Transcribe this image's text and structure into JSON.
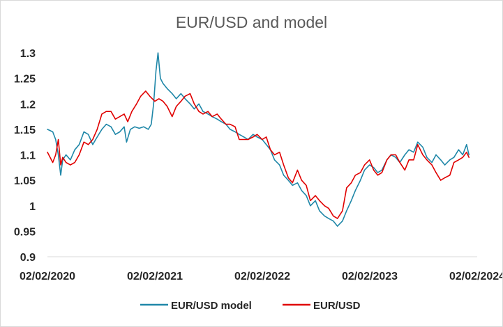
{
  "chart_data": {
    "type": "line",
    "title": "EUR/USD and model",
    "xlabel": "",
    "ylabel": "",
    "ylim": [
      0.9,
      1.3
    ],
    "y_ticks": [
      "0.9",
      "0.95",
      "1",
      "1.05",
      "1.1",
      "1.15",
      "1.2",
      "1.25",
      "1.3"
    ],
    "x_ticks": [
      "02/02/2020",
      "02/02/2021",
      "02/02/2022",
      "02/02/2023",
      "02/02/2024"
    ],
    "xlim": [
      "2020-02-02",
      "2024-02-02"
    ],
    "grid": false,
    "legend_position": "bottom",
    "series": [
      {
        "name": "EUR/USD model",
        "color": "#1f87a8",
        "points": [
          [
            "2020-02-02",
            1.15
          ],
          [
            "2020-02-20",
            1.145
          ],
          [
            "2020-03-01",
            1.13
          ],
          [
            "2020-03-10",
            1.1
          ],
          [
            "2020-03-18",
            1.06
          ],
          [
            "2020-03-25",
            1.09
          ],
          [
            "2020-04-05",
            1.1
          ],
          [
            "2020-04-20",
            1.09
          ],
          [
            "2020-05-05",
            1.11
          ],
          [
            "2020-05-20",
            1.12
          ],
          [
            "2020-06-05",
            1.145
          ],
          [
            "2020-06-20",
            1.14
          ],
          [
            "2020-07-05",
            1.12
          ],
          [
            "2020-07-20",
            1.135
          ],
          [
            "2020-08-05",
            1.15
          ],
          [
            "2020-08-20",
            1.16
          ],
          [
            "2020-09-05",
            1.155
          ],
          [
            "2020-09-20",
            1.14
          ],
          [
            "2020-10-05",
            1.145
          ],
          [
            "2020-10-20",
            1.155
          ],
          [
            "2020-10-28",
            1.125
          ],
          [
            "2020-11-10",
            1.15
          ],
          [
            "2020-11-25",
            1.155
          ],
          [
            "2020-12-10",
            1.152
          ],
          [
            "2020-12-25",
            1.155
          ],
          [
            "2021-01-10",
            1.15
          ],
          [
            "2021-01-20",
            1.16
          ],
          [
            "2021-01-28",
            1.2
          ],
          [
            "2021-02-05",
            1.265
          ],
          [
            "2021-02-12",
            1.3
          ],
          [
            "2021-02-20",
            1.25
          ],
          [
            "2021-03-01",
            1.24
          ],
          [
            "2021-03-15",
            1.23
          ],
          [
            "2021-04-01",
            1.22
          ],
          [
            "2021-04-15",
            1.21
          ],
          [
            "2021-05-01",
            1.22
          ],
          [
            "2021-05-15",
            1.21
          ],
          [
            "2021-06-01",
            1.2
          ],
          [
            "2021-06-15",
            1.19
          ],
          [
            "2021-07-01",
            1.2
          ],
          [
            "2021-07-15",
            1.185
          ],
          [
            "2021-08-01",
            1.18
          ],
          [
            "2021-08-15",
            1.175
          ],
          [
            "2021-09-01",
            1.17
          ],
          [
            "2021-09-15",
            1.165
          ],
          [
            "2021-10-01",
            1.16
          ],
          [
            "2021-10-15",
            1.15
          ],
          [
            "2021-11-01",
            1.145
          ],
          [
            "2021-11-15",
            1.14
          ],
          [
            "2021-12-01",
            1.135
          ],
          [
            "2021-12-15",
            1.13
          ],
          [
            "2022-01-01",
            1.14
          ],
          [
            "2022-01-15",
            1.135
          ],
          [
            "2022-02-01",
            1.13
          ],
          [
            "2022-02-15",
            1.12
          ],
          [
            "2022-03-01",
            1.11
          ],
          [
            "2022-03-15",
            1.09
          ],
          [
            "2022-04-01",
            1.08
          ],
          [
            "2022-04-15",
            1.06
          ],
          [
            "2022-05-01",
            1.05
          ],
          [
            "2022-05-15",
            1.04
          ],
          [
            "2022-06-01",
            1.045
          ],
          [
            "2022-06-15",
            1.03
          ],
          [
            "2022-07-01",
            1.02
          ],
          [
            "2022-07-15",
            1.0
          ],
          [
            "2022-08-01",
            1.01
          ],
          [
            "2022-08-15",
            0.99
          ],
          [
            "2022-09-01",
            0.98
          ],
          [
            "2022-09-15",
            0.975
          ],
          [
            "2022-10-01",
            0.97
          ],
          [
            "2022-10-15",
            0.96
          ],
          [
            "2022-11-01",
            0.97
          ],
          [
            "2022-11-15",
            0.99
          ],
          [
            "2022-12-01",
            1.01
          ],
          [
            "2022-12-15",
            1.03
          ],
          [
            "2023-01-01",
            1.05
          ],
          [
            "2023-01-15",
            1.07
          ],
          [
            "2023-02-01",
            1.08
          ],
          [
            "2023-02-15",
            1.075
          ],
          [
            "2023-03-01",
            1.065
          ],
          [
            "2023-03-15",
            1.07
          ],
          [
            "2023-04-01",
            1.09
          ],
          [
            "2023-04-15",
            1.1
          ],
          [
            "2023-05-01",
            1.095
          ],
          [
            "2023-05-15",
            1.085
          ],
          [
            "2023-06-01",
            1.1
          ],
          [
            "2023-06-15",
            1.11
          ],
          [
            "2023-07-01",
            1.105
          ],
          [
            "2023-07-15",
            1.125
          ],
          [
            "2023-08-01",
            1.115
          ],
          [
            "2023-08-15",
            1.095
          ],
          [
            "2023-09-01",
            1.085
          ],
          [
            "2023-09-15",
            1.1
          ],
          [
            "2023-10-01",
            1.09
          ],
          [
            "2023-10-15",
            1.08
          ],
          [
            "2023-11-01",
            1.09
          ],
          [
            "2023-11-15",
            1.095
          ],
          [
            "2023-12-01",
            1.11
          ],
          [
            "2023-12-15",
            1.1
          ],
          [
            "2023-12-28",
            1.12
          ],
          [
            "2024-01-05",
            1.1
          ]
        ]
      },
      {
        "name": "EUR/USD",
        "color": "#e00000",
        "points": [
          [
            "2020-02-02",
            1.105
          ],
          [
            "2020-02-20",
            1.085
          ],
          [
            "2020-03-01",
            1.1
          ],
          [
            "2020-03-10",
            1.13
          ],
          [
            "2020-03-18",
            1.08
          ],
          [
            "2020-03-25",
            1.095
          ],
          [
            "2020-04-05",
            1.085
          ],
          [
            "2020-04-20",
            1.08
          ],
          [
            "2020-05-05",
            1.085
          ],
          [
            "2020-05-20",
            1.1
          ],
          [
            "2020-06-05",
            1.125
          ],
          [
            "2020-06-20",
            1.12
          ],
          [
            "2020-07-05",
            1.13
          ],
          [
            "2020-07-20",
            1.15
          ],
          [
            "2020-08-05",
            1.18
          ],
          [
            "2020-08-20",
            1.185
          ],
          [
            "2020-09-05",
            1.185
          ],
          [
            "2020-09-20",
            1.17
          ],
          [
            "2020-10-05",
            1.175
          ],
          [
            "2020-10-20",
            1.18
          ],
          [
            "2020-11-01",
            1.165
          ],
          [
            "2020-11-15",
            1.185
          ],
          [
            "2020-12-01",
            1.2
          ],
          [
            "2020-12-15",
            1.215
          ],
          [
            "2021-01-01",
            1.225
          ],
          [
            "2021-01-15",
            1.215
          ],
          [
            "2021-02-01",
            1.205
          ],
          [
            "2021-02-15",
            1.21
          ],
          [
            "2021-03-01",
            1.205
          ],
          [
            "2021-03-15",
            1.195
          ],
          [
            "2021-04-01",
            1.175
          ],
          [
            "2021-04-15",
            1.195
          ],
          [
            "2021-05-01",
            1.205
          ],
          [
            "2021-05-15",
            1.215
          ],
          [
            "2021-06-01",
            1.22
          ],
          [
            "2021-06-15",
            1.2
          ],
          [
            "2021-07-01",
            1.185
          ],
          [
            "2021-07-15",
            1.18
          ],
          [
            "2021-08-01",
            1.185
          ],
          [
            "2021-08-15",
            1.175
          ],
          [
            "2021-09-01",
            1.18
          ],
          [
            "2021-09-15",
            1.17
          ],
          [
            "2021-10-01",
            1.16
          ],
          [
            "2021-10-15",
            1.16
          ],
          [
            "2021-11-01",
            1.155
          ],
          [
            "2021-11-15",
            1.13
          ],
          [
            "2021-12-01",
            1.13
          ],
          [
            "2021-12-15",
            1.13
          ],
          [
            "2022-01-01",
            1.135
          ],
          [
            "2022-01-15",
            1.14
          ],
          [
            "2022-02-01",
            1.13
          ],
          [
            "2022-02-15",
            1.135
          ],
          [
            "2022-03-01",
            1.11
          ],
          [
            "2022-03-15",
            1.1
          ],
          [
            "2022-04-01",
            1.105
          ],
          [
            "2022-04-15",
            1.08
          ],
          [
            "2022-05-01",
            1.055
          ],
          [
            "2022-05-15",
            1.045
          ],
          [
            "2022-06-01",
            1.07
          ],
          [
            "2022-06-15",
            1.05
          ],
          [
            "2022-07-01",
            1.04
          ],
          [
            "2022-07-15",
            1.01
          ],
          [
            "2022-08-01",
            1.02
          ],
          [
            "2022-08-15",
            1.01
          ],
          [
            "2022-09-01",
            1.0
          ],
          [
            "2022-09-15",
            0.995
          ],
          [
            "2022-10-01",
            0.98
          ],
          [
            "2022-10-15",
            0.975
          ],
          [
            "2022-11-01",
            0.99
          ],
          [
            "2022-11-15",
            1.035
          ],
          [
            "2022-12-01",
            1.045
          ],
          [
            "2022-12-15",
            1.06
          ],
          [
            "2023-01-01",
            1.065
          ],
          [
            "2023-01-15",
            1.08
          ],
          [
            "2023-02-01",
            1.09
          ],
          [
            "2023-02-15",
            1.07
          ],
          [
            "2023-03-01",
            1.06
          ],
          [
            "2023-03-15",
            1.065
          ],
          [
            "2023-04-01",
            1.09
          ],
          [
            "2023-04-15",
            1.1
          ],
          [
            "2023-05-01",
            1.1
          ],
          [
            "2023-05-15",
            1.085
          ],
          [
            "2023-06-01",
            1.07
          ],
          [
            "2023-06-15",
            1.09
          ],
          [
            "2023-07-01",
            1.09
          ],
          [
            "2023-07-15",
            1.12
          ],
          [
            "2023-08-01",
            1.1
          ],
          [
            "2023-08-15",
            1.09
          ],
          [
            "2023-09-01",
            1.08
          ],
          [
            "2023-09-15",
            1.065
          ],
          [
            "2023-10-01",
            1.05
          ],
          [
            "2023-10-15",
            1.055
          ],
          [
            "2023-11-01",
            1.06
          ],
          [
            "2023-11-15",
            1.085
          ],
          [
            "2023-12-01",
            1.09
          ],
          [
            "2023-12-15",
            1.095
          ],
          [
            "2023-12-28",
            1.105
          ],
          [
            "2024-01-05",
            1.095
          ]
        ]
      }
    ]
  }
}
